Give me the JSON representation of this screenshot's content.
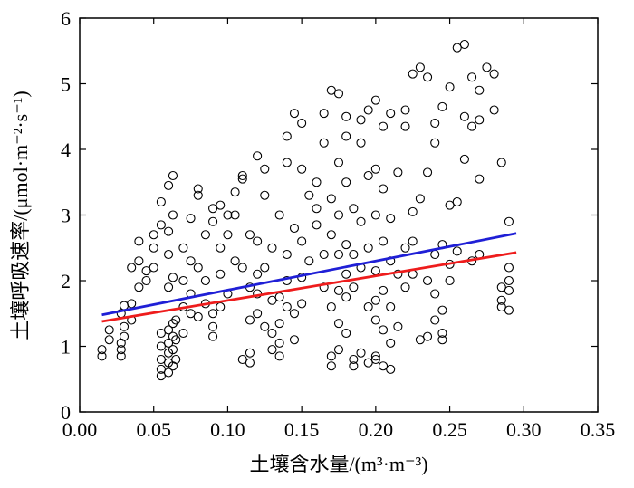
{
  "chart_data": {
    "type": "scatter",
    "xlabel": "土壤含水量/(m³·m⁻³)",
    "ylabel": "土壤呼吸速率/(μmol·m⁻²·s⁻¹)",
    "xlim": [
      0,
      0.35
    ],
    "ylim": [
      0,
      6
    ],
    "xticks": [
      {
        "value": 0,
        "label": "0.00"
      },
      0.05,
      {
        "value": 0.1,
        "label": "0.10"
      },
      0.15,
      {
        "value": 0.2,
        "label": "0.20"
      },
      0.25,
      {
        "value": 0.3,
        "label": "0.30"
      },
      0.35
    ],
    "yticks": [
      0,
      1,
      2,
      3,
      4,
      5,
      6
    ],
    "series": [
      {
        "color": "#000000",
        "x": [
          0.015,
          0.015,
          0.02,
          0.02,
          0.028,
          0.028,
          0.028,
          0.028,
          0.03,
          0.03,
          0.03,
          0.035,
          0.035,
          0.035,
          0.04,
          0.04,
          0.04,
          0.045,
          0.045,
          0.05,
          0.05,
          0.05,
          0.055,
          0.055,
          0.055,
          0.055,
          0.055,
          0.055,
          0.055,
          0.06,
          0.06,
          0.06,
          0.06,
          0.06,
          0.06,
          0.06,
          0.06,
          0.06,
          0.063,
          0.063,
          0.063,
          0.063,
          0.063,
          0.063,
          0.063,
          0.065,
          0.065,
          0.065,
          0.07,
          0.07,
          0.07,
          0.07,
          0.075,
          0.075,
          0.075,
          0.075,
          0.08,
          0.08,
          0.08,
          0.08,
          0.085,
          0.085,
          0.085,
          0.09,
          0.09,
          0.09,
          0.09,
          0.09,
          0.095,
          0.095,
          0.095,
          0.095,
          0.1,
          0.1,
          0.1,
          0.105,
          0.105,
          0.105,
          0.11,
          0.11,
          0.11,
          0.11,
          0.115,
          0.115,
          0.115,
          0.115,
          0.115,
          0.12,
          0.12,
          0.12,
          0.12,
          0.12,
          0.125,
          0.125,
          0.125,
          0.125,
          0.13,
          0.13,
          0.13,
          0.13,
          0.135,
          0.135,
          0.135,
          0.135,
          0.135,
          0.14,
          0.14,
          0.14,
          0.14,
          0.14,
          0.145,
          0.145,
          0.145,
          0.145,
          0.15,
          0.15,
          0.15,
          0.15,
          0.15,
          0.155,
          0.155,
          0.16,
          0.16,
          0.16,
          0.165,
          0.165,
          0.165,
          0.165,
          0.17,
          0.17,
          0.17,
          0.17,
          0.17,
          0.17,
          0.175,
          0.175,
          0.175,
          0.175,
          0.175,
          0.175,
          0.175,
          0.18,
          0.18,
          0.18,
          0.18,
          0.18,
          0.18,
          0.18,
          0.185,
          0.185,
          0.185,
          0.185,
          0.185,
          0.19,
          0.19,
          0.19,
          0.19,
          0.19,
          0.195,
          0.195,
          0.195,
          0.195,
          0.195,
          0.2,
          0.2,
          0.2,
          0.2,
          0.2,
          0.2,
          0.2,
          0.2,
          0.205,
          0.205,
          0.205,
          0.205,
          0.205,
          0.205,
          0.21,
          0.21,
          0.21,
          0.21,
          0.21,
          0.21,
          0.215,
          0.215,
          0.215,
          0.22,
          0.22,
          0.22,
          0.22,
          0.225,
          0.225,
          0.225,
          0.225,
          0.23,
          0.23,
          0.23,
          0.235,
          0.235,
          0.235,
          0.235,
          0.24,
          0.24,
          0.24,
          0.24,
          0.24,
          0.245,
          0.245,
          0.245,
          0.245,
          0.245,
          0.25,
          0.25,
          0.25,
          0.25,
          0.255,
          0.255,
          0.255,
          0.26,
          0.26,
          0.26,
          0.265,
          0.265,
          0.265,
          0.27,
          0.27,
          0.27,
          0.27,
          0.275,
          0.28,
          0.28,
          0.285,
          0.285,
          0.285,
          0.285,
          0.29,
          0.29,
          0.29,
          0.29,
          0.29
        ],
        "values": [
          0.85,
          0.95,
          1.1,
          1.25,
          0.85,
          0.95,
          1.05,
          1.5,
          1.15,
          1.3,
          1.62,
          1.4,
          1.65,
          2.2,
          1.9,
          2.3,
          2.6,
          2.0,
          2.15,
          2.5,
          2.2,
          2.7,
          0.55,
          0.65,
          0.8,
          1.0,
          1.2,
          2.85,
          3.2,
          0.6,
          0.75,
          0.9,
          1.05,
          1.25,
          1.9,
          2.4,
          2.75,
          3.45,
          0.7,
          0.95,
          1.15,
          1.35,
          2.05,
          3.0,
          3.6,
          0.8,
          1.1,
          1.4,
          1.2,
          1.6,
          2.0,
          2.5,
          1.5,
          1.8,
          2.3,
          2.95,
          1.45,
          2.2,
          3.3,
          3.4,
          1.65,
          2.0,
          2.7,
          1.15,
          1.3,
          1.5,
          2.9,
          3.1,
          1.6,
          2.1,
          2.5,
          3.15,
          1.8,
          2.7,
          3.0,
          2.3,
          3.0,
          3.35,
          0.8,
          2.2,
          3.55,
          3.6,
          0.75,
          0.9,
          1.4,
          1.9,
          2.7,
          1.5,
          1.8,
          2.1,
          2.6,
          3.9,
          1.3,
          2.2,
          3.3,
          3.7,
          0.95,
          1.2,
          1.7,
          2.5,
          0.85,
          1.05,
          1.35,
          1.75,
          3.0,
          1.6,
          2.0,
          2.4,
          3.8,
          4.2,
          1.1,
          1.5,
          2.8,
          4.55,
          1.65,
          2.05,
          2.6,
          3.7,
          4.4,
          2.3,
          3.3,
          2.85,
          3.5,
          3.1,
          1.9,
          2.4,
          4.1,
          4.55,
          0.7,
          0.85,
          1.6,
          2.7,
          3.25,
          4.9,
          0.95,
          1.35,
          1.85,
          2.4,
          3.0,
          3.8,
          4.85,
          1.2,
          1.75,
          2.1,
          2.55,
          3.5,
          4.5,
          4.2,
          0.7,
          0.8,
          1.9,
          2.4,
          3.1,
          0.9,
          2.2,
          2.9,
          4.1,
          4.45,
          0.75,
          1.6,
          2.5,
          3.6,
          4.6,
          0.8,
          0.85,
          1.4,
          1.7,
          2.15,
          3.0,
          3.7,
          4.75,
          0.7,
          1.25,
          1.85,
          2.6,
          3.4,
          4.35,
          0.65,
          1.05,
          1.6,
          2.3,
          2.95,
          4.55,
          1.3,
          2.1,
          3.65,
          1.9,
          2.5,
          4.6,
          4.35,
          2.1,
          2.6,
          3.05,
          5.15,
          1.1,
          3.25,
          5.25,
          1.15,
          2.0,
          3.65,
          5.1,
          1.4,
          1.8,
          2.4,
          4.1,
          4.4,
          1.1,
          1.2,
          1.55,
          2.55,
          4.65,
          2.0,
          2.25,
          3.15,
          4.95,
          2.45,
          5.55,
          3.2,
          5.6,
          3.85,
          4.5,
          2.3,
          4.35,
          5.1,
          2.4,
          3.55,
          4.45,
          4.9,
          5.25,
          5.15,
          4.6,
          3.8,
          1.6,
          1.7,
          1.9,
          1.55,
          1.85,
          2.0,
          2.2,
          2.9
        ]
      }
    ],
    "fit_lines": [
      {
        "color": "#1f1fd6",
        "x": [
          0.015,
          0.295
        ],
        "values": [
          1.48,
          2.72
        ]
      },
      {
        "color": "#ee1c1c",
        "x": [
          0.015,
          0.295
        ],
        "values": [
          1.38,
          2.43
        ]
      }
    ]
  }
}
